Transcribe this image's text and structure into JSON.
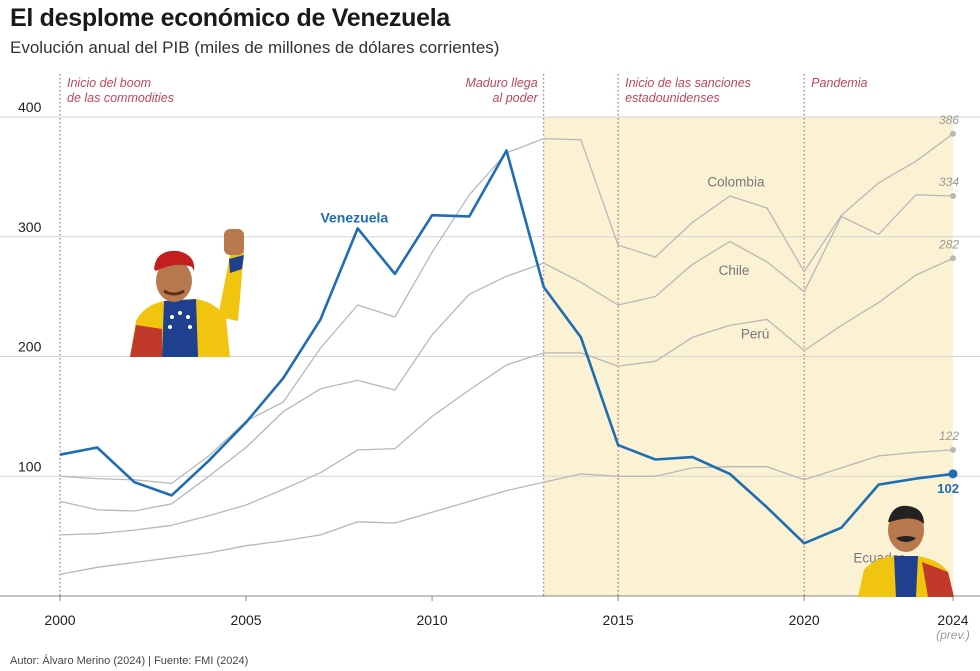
{
  "title": "El desplome económico de Venezuela",
  "subtitle": "Evolución anual del PIB (miles de millones de dólares corrientes)",
  "footer": "Autor: Álvaro Merino (2024) | Fuente: FMI (2024)",
  "colors": {
    "venezuela": "#1f6db3",
    "others": "#b8b8b8",
    "annotation": "#c0475a",
    "shade": "#faf2d3",
    "grid": "#d4d4d4"
  },
  "chart_data": {
    "type": "line",
    "title": "El desplome económico de Venezuela",
    "subtitle": "Evolución anual del PIB (miles de millones de dólares corrientes)",
    "xlim": [
      2000,
      2024
    ],
    "ylim": [
      0,
      400
    ],
    "x_ticks": [
      {
        "value": 2000,
        "label": "2000"
      },
      {
        "value": 2005,
        "label": "2005"
      },
      {
        "value": 2010,
        "label": "2010"
      },
      {
        "value": 2015,
        "label": "2015"
      },
      {
        "value": 2020,
        "label": "2020"
      },
      {
        "value": 2024,
        "label": "2024"
      }
    ],
    "x_tick_note": "(prev.)",
    "y_ticks": [
      {
        "value": 100,
        "label": "100"
      },
      {
        "value": 200,
        "label": "200"
      },
      {
        "value": 300,
        "label": "300"
      },
      {
        "value": 400,
        "label": "400"
      }
    ],
    "grid": true,
    "shaded_period": [
      2013,
      2024
    ],
    "x": [
      2000,
      2001,
      2002,
      2003,
      2004,
      2005,
      2006,
      2007,
      2008,
      2009,
      2010,
      2011,
      2012,
      2013,
      2014,
      2015,
      2016,
      2017,
      2018,
      2019,
      2020,
      2021,
      2022,
      2023,
      2024
    ],
    "series": [
      {
        "name": "Venezuela",
        "highlight": true,
        "end_label": "102",
        "values": [
          118,
          124,
          95,
          84,
          113,
          145,
          182,
          231,
          307,
          269,
          318,
          317,
          372,
          258,
          216,
          126,
          114,
          116,
          102,
          74,
          44,
          57,
          93,
          98,
          102
        ]
      },
      {
        "name": "Colombia",
        "highlight": false,
        "end_label": "386",
        "values": [
          100,
          98,
          97,
          94,
          117,
          146,
          162,
          207,
          243,
          233,
          287,
          335,
          370,
          382,
          381,
          293,
          283,
          312,
          334,
          324,
          271,
          318,
          345,
          363,
          386
        ]
      },
      {
        "name": "Chile",
        "highlight": false,
        "end_label": "334",
        "values": [
          79,
          72,
          71,
          77,
          100,
          124,
          154,
          173,
          180,
          172,
          218,
          252,
          267,
          278,
          262,
          243,
          250,
          277,
          296,
          279,
          254,
          317,
          302,
          335,
          334
        ]
      },
      {
        "name": "Perú",
        "highlight": false,
        "end_label": "282",
        "values": [
          51,
          52,
          55,
          59,
          67,
          76,
          89,
          103,
          122,
          123,
          150,
          172,
          193,
          203,
          203,
          192,
          196,
          216,
          226,
          231,
          205,
          226,
          245,
          268,
          282
        ]
      },
      {
        "name": "Ecuador",
        "highlight": false,
        "end_label": "122",
        "values": [
          18,
          24,
          28,
          32,
          36,
          42,
          46,
          51,
          62,
          61,
          70,
          79,
          88,
          95,
          102,
          100,
          100,
          107,
          108,
          108,
          97,
          107,
          117,
          120,
          122
        ]
      }
    ],
    "annotations": [
      {
        "x": 2000,
        "lines": [
          "Inicio del boom",
          "de las commodities"
        ],
        "align": "left"
      },
      {
        "x": 2013,
        "lines": [
          "Maduro llega",
          "al poder"
        ],
        "align": "right"
      },
      {
        "x": 2015,
        "lines": [
          "Inicio de las sanciones",
          "estadounidenses"
        ],
        "align": "left"
      },
      {
        "x": 2020,
        "lines": [
          "Pandemia"
        ],
        "align": "left"
      }
    ],
    "series_labels": [
      {
        "name": "Venezuela",
        "x": 2007.0,
        "y": 312,
        "anchor": "start"
      },
      {
        "name": "Colombia",
        "x": 2017.4,
        "y": 342,
        "anchor": "start"
      },
      {
        "name": "Chile",
        "x": 2017.7,
        "y": 268,
        "anchor": "start"
      },
      {
        "name": "Perú",
        "x": 2018.3,
        "y": 215,
        "anchor": "start"
      },
      {
        "name": "Ecuador",
        "x": 2022.0,
        "y": 28,
        "anchor": "middle"
      }
    ]
  }
}
